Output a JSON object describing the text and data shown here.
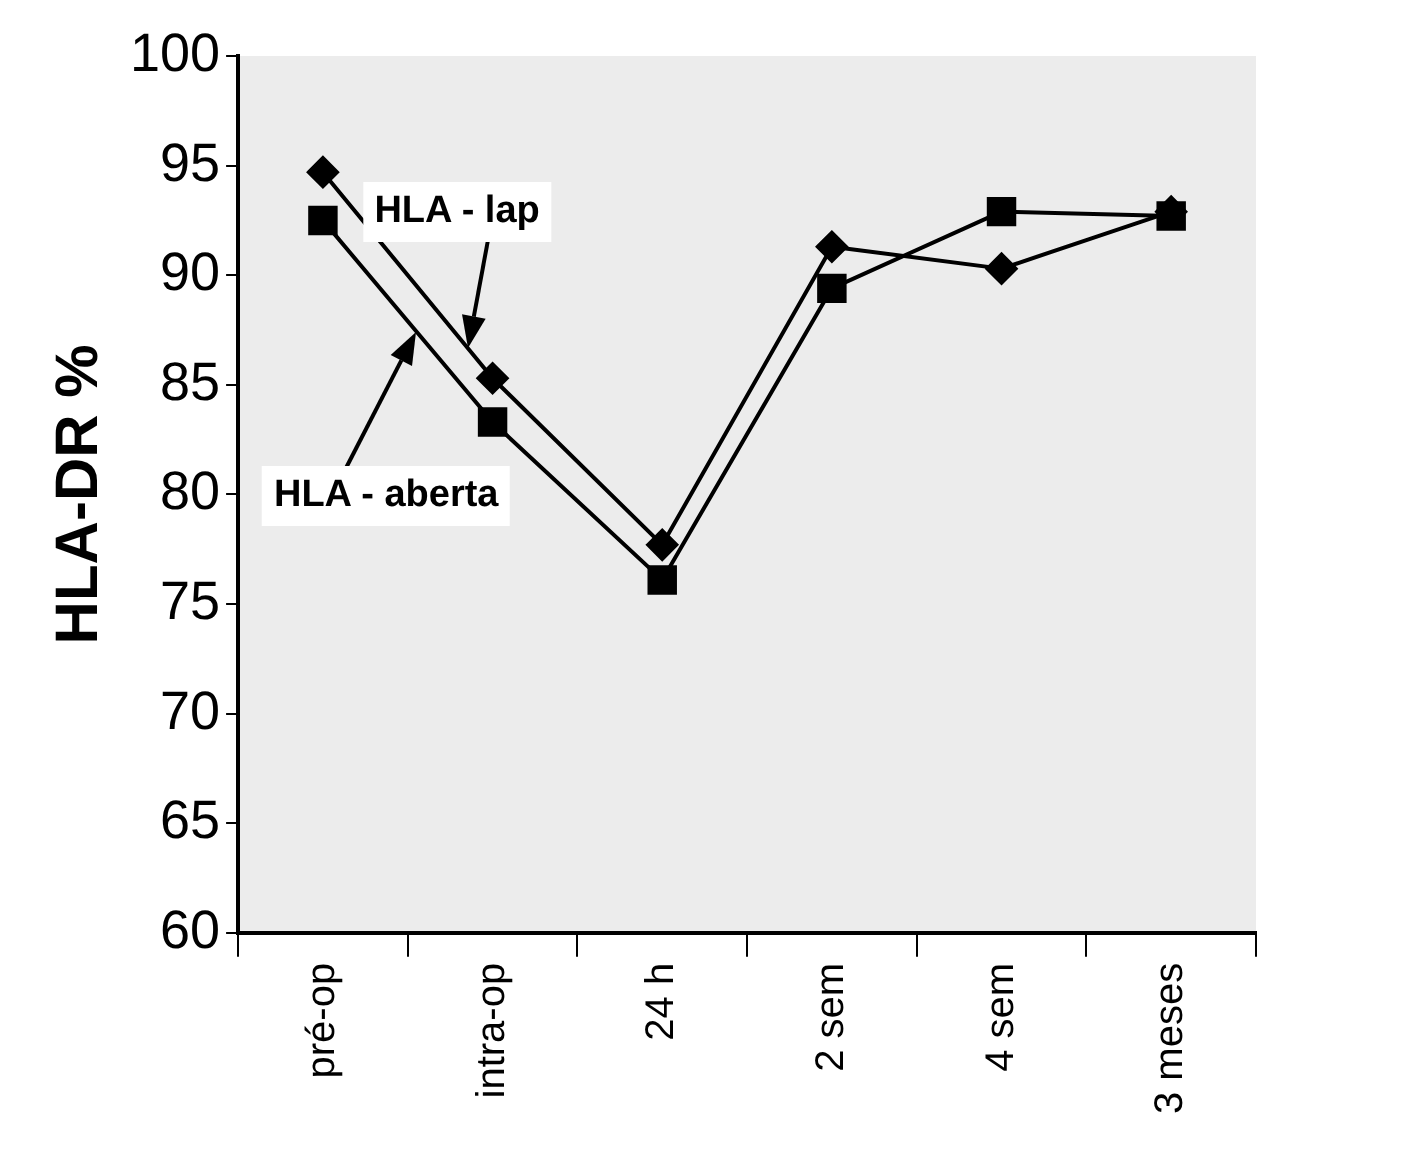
{
  "chart_data": {
    "type": "line",
    "ylabel": "HLA-DR %",
    "categories": [
      "pré-op",
      "intra-op",
      "24 h",
      "2 sem",
      "4 sem",
      "3 meses"
    ],
    "series": [
      {
        "name": "HLA - lap",
        "color": "#000000",
        "marker": "diamond",
        "values": [
          94.7,
          85.3,
          77.7,
          91.3,
          90.3,
          92.9
        ]
      },
      {
        "name": "HLA - aberta",
        "color": "#000000",
        "marker": "square",
        "values": [
          92.5,
          83.3,
          76.1,
          89.4,
          92.9,
          92.7
        ]
      }
    ],
    "ylim": [
      60,
      100
    ],
    "yticks": [
      60,
      65,
      70,
      75,
      80,
      85,
      90,
      95,
      100
    ],
    "grid": false,
    "legend": false,
    "line_style": "solid"
  }
}
